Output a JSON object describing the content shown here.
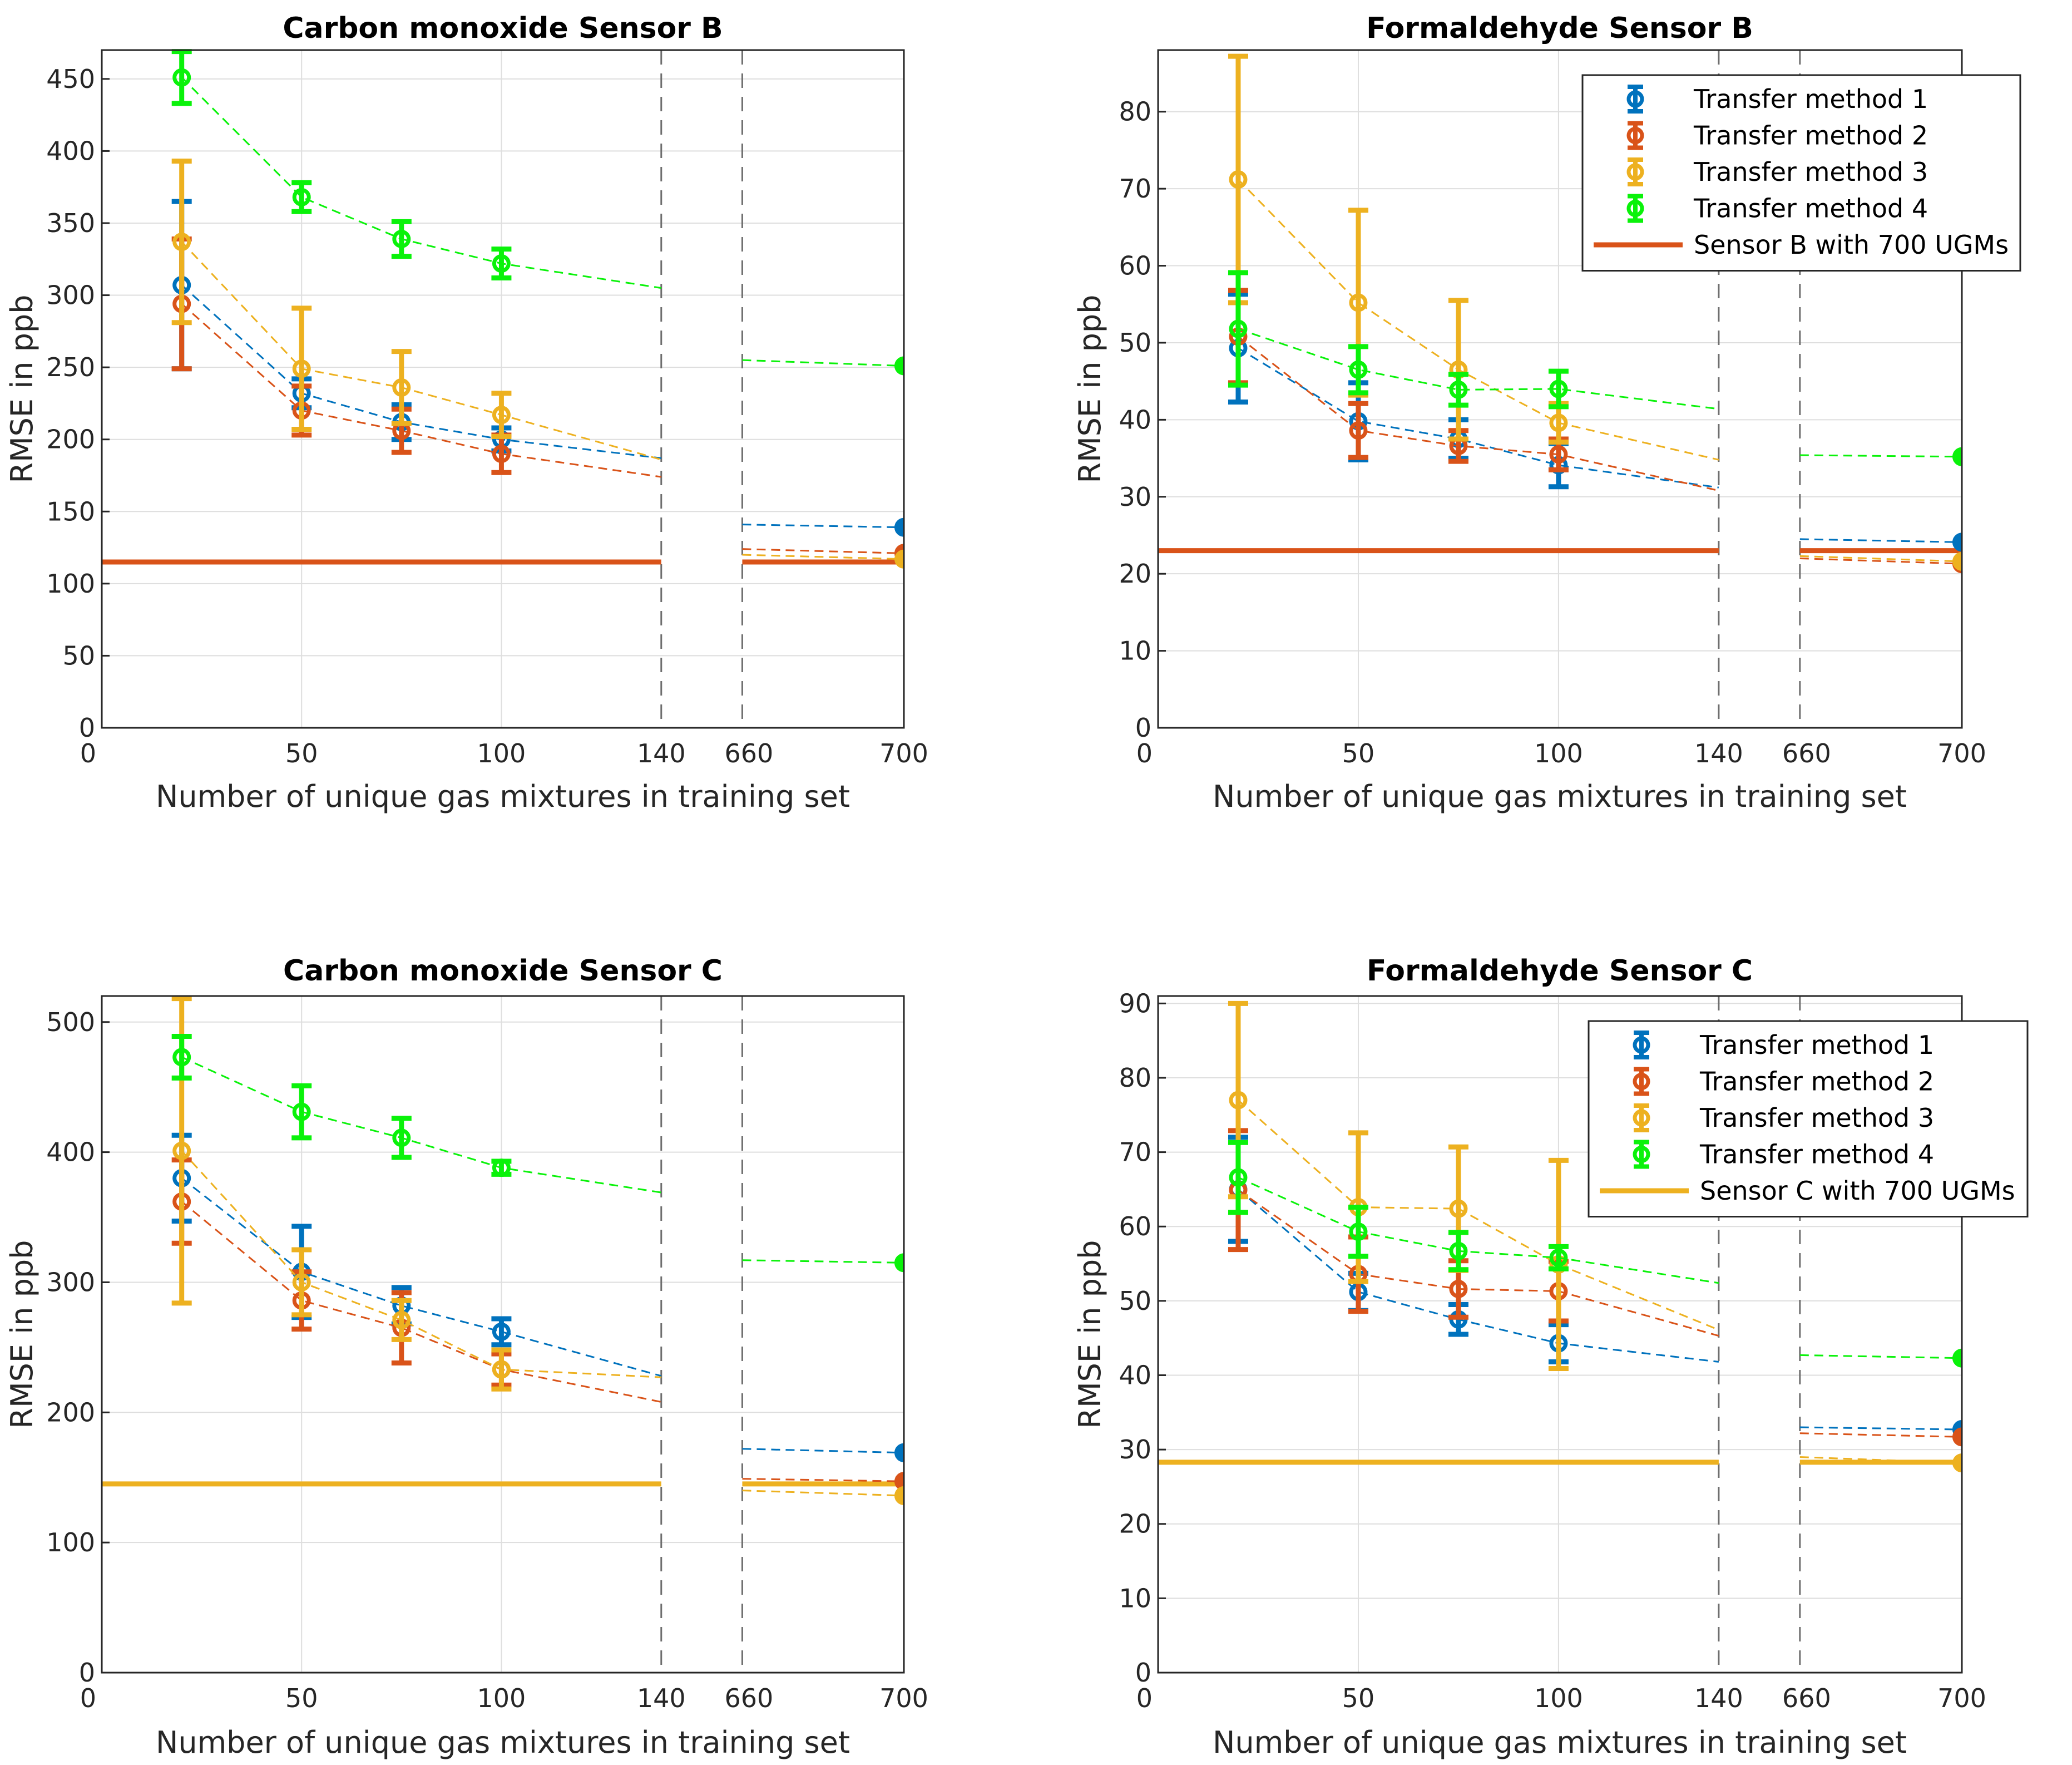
{
  "colors": {
    "method1": "#0072BD",
    "method2": "#D95319",
    "method3": "#EDB120",
    "method4": "#0AF20A"
  },
  "chart_data": [
    {
      "type": "line",
      "title": "Carbon monoxide Sensor B",
      "xlabel": "Number of unique gas mixtures in training set",
      "ylabel": "RMSE in ppb",
      "x_ticks": [
        "0",
        "50",
        "100",
        "140",
        "660",
        "700"
      ],
      "ylim": [
        0,
        470
      ],
      "y_ticks": [
        0,
        50,
        100,
        150,
        200,
        250,
        300,
        350,
        400,
        450
      ],
      "reference": {
        "name": "Sensor B with 700 UGMs",
        "value": 115,
        "color_key": "method2"
      },
      "legend": false,
      "series": [
        {
          "name": "Transfer method 1",
          "color_key": "method1",
          "x": [
            20,
            50,
            75,
            100
          ],
          "y": [
            307,
            232,
            212,
            200
          ],
          "err": [
            58,
            10,
            12,
            8
          ],
          "trend_end": 187,
          "tail_start": 141,
          "value_700": 139
        },
        {
          "name": "Transfer method 2",
          "color_key": "method2",
          "x": [
            20,
            50,
            75,
            100
          ],
          "y": [
            294,
            220,
            206,
            190
          ],
          "err": [
            45,
            17,
            15,
            13
          ],
          "trend_end": 174,
          "tail_start": 124,
          "value_700": 121
        },
        {
          "name": "Transfer method 3",
          "color_key": "method3",
          "x": [
            20,
            50,
            75,
            100
          ],
          "y": [
            337,
            249,
            236,
            217
          ],
          "err": [
            56,
            42,
            25,
            15
          ],
          "trend_end": 186,
          "tail_start": 120,
          "value_700": 117
        },
        {
          "name": "Transfer method 4",
          "color_key": "method4",
          "x": [
            20,
            50,
            75,
            100
          ],
          "y": [
            451,
            368,
            339,
            322
          ],
          "err": [
            18,
            10,
            12,
            10
          ],
          "trend_end": 305,
          "tail_start": 255,
          "value_700": 251
        }
      ]
    },
    {
      "type": "line",
      "title": "Formaldehyde Sensor B",
      "xlabel": "Number of unique gas mixtures in training set",
      "ylabel": "RMSE in ppb",
      "x_ticks": [
        "0",
        "50",
        "100",
        "140",
        "660",
        "700"
      ],
      "ylim": [
        0,
        88
      ],
      "y_ticks": [
        0,
        10,
        20,
        30,
        40,
        50,
        60,
        70,
        80
      ],
      "reference": {
        "name": "Sensor B with 700 UGMs",
        "value": 23,
        "color_key": "method2"
      },
      "legend": true,
      "series": [
        {
          "name": "Transfer method 1",
          "color_key": "method1",
          "x": [
            20,
            50,
            75,
            100
          ],
          "y": [
            49.3,
            39.8,
            37.5,
            34.1
          ],
          "err": [
            7,
            5,
            2.5,
            2.8
          ],
          "trend_end": 31.2,
          "tail_start": 24.5,
          "value_700": 24.1
        },
        {
          "name": "Transfer method 2",
          "color_key": "method2",
          "x": [
            20,
            50,
            75,
            100
          ],
          "y": [
            50.8,
            38.6,
            36.6,
            35.5
          ],
          "err": [
            6,
            3.5,
            2,
            2
          ],
          "trend_end": 30.8,
          "tail_start": 22,
          "value_700": 21.3
        },
        {
          "name": "Transfer method 3",
          "color_key": "method3",
          "x": [
            20,
            50,
            75,
            100
          ],
          "y": [
            71.2,
            55.2,
            46.5,
            39.6
          ],
          "err": [
            16,
            12,
            9,
            2.5
          ],
          "trend_end": 34.8,
          "tail_start": 22.3,
          "value_700": 21.6
        },
        {
          "name": "Transfer method 4",
          "color_key": "method4",
          "x": [
            20,
            50,
            75,
            100
          ],
          "y": [
            51.8,
            46.5,
            43.9,
            44
          ],
          "err": [
            7.3,
            3,
            2,
            2.3
          ],
          "trend_end": 41.4,
          "tail_start": 35.4,
          "value_700": 35.2
        }
      ]
    },
    {
      "type": "line",
      "title": "Carbon monoxide Sensor C",
      "xlabel": "Number of unique gas mixtures in training set",
      "ylabel": "RMSE in ppb",
      "x_ticks": [
        "0",
        "50",
        "100",
        "140",
        "660",
        "700"
      ],
      "ylim": [
        0,
        520
      ],
      "y_ticks": [
        0,
        100,
        200,
        300,
        400,
        500
      ],
      "reference": {
        "name": "Sensor C with 700 UGMs",
        "value": 145,
        "color_key": "method3"
      },
      "legend": false,
      "series": [
        {
          "name": "Transfer method 1",
          "color_key": "method1",
          "x": [
            20,
            50,
            75,
            100
          ],
          "y": [
            380,
            308,
            282,
            262
          ],
          "err": [
            33,
            35,
            14,
            10
          ],
          "trend_end": 228,
          "tail_start": 172,
          "value_700": 169
        },
        {
          "name": "Transfer method 2",
          "color_key": "method2",
          "x": [
            20,
            50,
            75,
            100
          ],
          "y": [
            362,
            286,
            265,
            233
          ],
          "err": [
            32,
            22,
            27,
            12
          ],
          "trend_end": 208,
          "tail_start": 149,
          "value_700": 147
        },
        {
          "name": "Transfer method 3",
          "color_key": "method3",
          "x": [
            20,
            50,
            75,
            100
          ],
          "y": [
            401,
            300,
            271,
            233
          ],
          "err": [
            117,
            25,
            15,
            15
          ],
          "trend_end": 227,
          "tail_start": 140,
          "value_700": 136
        },
        {
          "name": "Transfer method 4",
          "color_key": "method4",
          "x": [
            20,
            50,
            75,
            100
          ],
          "y": [
            473,
            431,
            411,
            388
          ],
          "err": [
            16,
            20,
            15,
            5
          ],
          "trend_end": 369,
          "tail_start": 317,
          "value_700": 315
        }
      ]
    },
    {
      "type": "line",
      "title": "Formaldehyde Sensor C",
      "xlabel": "Number of unique gas mixtures in training set",
      "ylabel": "RMSE in ppb",
      "x_ticks": [
        "0",
        "50",
        "100",
        "140",
        "660",
        "700"
      ],
      "ylim": [
        0,
        91
      ],
      "y_ticks": [
        0,
        10,
        20,
        30,
        40,
        50,
        60,
        70,
        80,
        90
      ],
      "reference": {
        "name": "Sensor C with 700 UGMs",
        "value": 28.3,
        "color_key": "method3"
      },
      "legend": true,
      "series": [
        {
          "name": "Transfer method 1",
          "color_key": "method1",
          "x": [
            20,
            50,
            75,
            100
          ],
          "y": [
            65,
            51.2,
            47.5,
            44.3
          ],
          "err": [
            7,
            2.5,
            2,
            2.5
          ],
          "trend_end": 41.8,
          "tail_start": 33,
          "value_700": 32.7
        },
        {
          "name": "Transfer method 2",
          "color_key": "method2",
          "x": [
            20,
            50,
            75,
            100
          ],
          "y": [
            64.9,
            53.6,
            51.6,
            51.3
          ],
          "err": [
            8,
            5,
            3.8,
            4
          ],
          "trend_end": 45.3,
          "tail_start": 32.2,
          "value_700": 31.7
        },
        {
          "name": "Transfer method 3",
          "color_key": "method3",
          "x": [
            20,
            50,
            75,
            100
          ],
          "y": [
            77,
            62.6,
            62.4,
            54.9
          ],
          "err": [
            13,
            10,
            8.3,
            14
          ],
          "trend_end": 46.1,
          "tail_start": 29,
          "value_700": 28.2
        },
        {
          "name": "Transfer method 4",
          "color_key": "method4",
          "x": [
            20,
            50,
            75,
            100
          ],
          "y": [
            66.6,
            59.3,
            56.7,
            55.8
          ],
          "err": [
            4.7,
            3.3,
            2.5,
            1.5
          ],
          "trend_end": 52.4,
          "tail_start": 42.7,
          "value_700": 42.3
        }
      ]
    }
  ]
}
